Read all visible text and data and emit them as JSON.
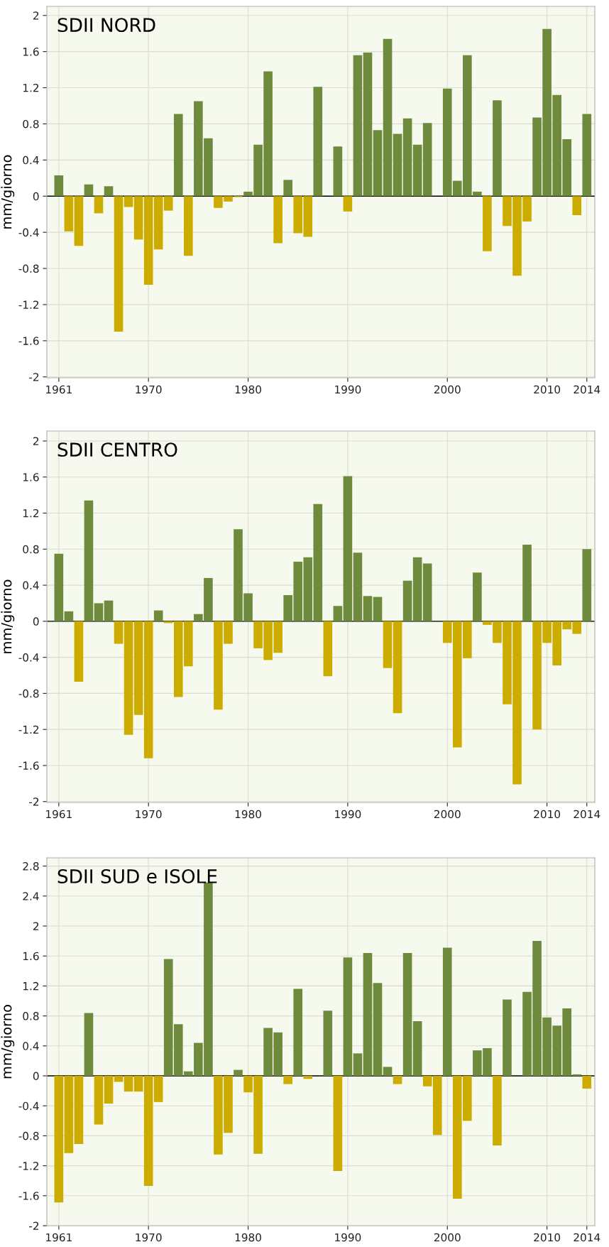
{
  "chart_data": [
    {
      "type": "bar",
      "title": "SDII NORD",
      "ylabel": "mm/giorno",
      "x": [
        1961,
        1962,
        1963,
        1964,
        1965,
        1966,
        1967,
        1968,
        1969,
        1970,
        1971,
        1972,
        1973,
        1974,
        1975,
        1976,
        1977,
        1978,
        1979,
        1980,
        1981,
        1982,
        1983,
        1984,
        1985,
        1986,
        1987,
        1988,
        1989,
        1990,
        1991,
        1992,
        1993,
        1994,
        1995,
        1996,
        1997,
        1998,
        1999,
        2000,
        2001,
        2002,
        2003,
        2004,
        2005,
        2006,
        2007,
        2008,
        2009,
        2010,
        2011,
        2012,
        2013,
        2014
      ],
      "values": [
        0.23,
        -0.39,
        -0.55,
        0.13,
        -0.19,
        0.11,
        -1.5,
        -0.12,
        -0.48,
        -0.98,
        -0.59,
        -0.16,
        0.91,
        -0.66,
        1.05,
        0.64,
        -0.13,
        -0.06,
        -0.01,
        0.05,
        0.57,
        1.38,
        -0.52,
        0.18,
        -0.41,
        -0.45,
        1.21,
        0,
        0.55,
        -0.17,
        1.56,
        1.59,
        0.73,
        1.74,
        0.69,
        0.86,
        0.57,
        0.81,
        0,
        1.19,
        0.17,
        1.56,
        0.05,
        -0.61,
        1.06,
        -0.33,
        -0.88,
        -0.28,
        0.87,
        1.85,
        1.12,
        0.63,
        -0.21,
        0.91
      ],
      "colors": [
        "#6e8b3d",
        "#cdac00",
        "#cdac00",
        "#6e8b3d",
        "#cdac00",
        "#6e8b3d",
        "#cdac00",
        "#cdac00",
        "#cdac00",
        "#cdac00",
        "#cdac00",
        "#cdac00",
        "#6e8b3d",
        "#cdac00",
        "#6e8b3d",
        "#6e8b3d",
        "#cdac00",
        "#cdac00",
        "#cdac00",
        "#6e8b3d",
        "#6e8b3d",
        "#6e8b3d",
        "#cdac00",
        "#6e8b3d",
        "#cdac00",
        "#cdac00",
        "#6e8b3d",
        "#6e8b3d",
        "#6e8b3d",
        "#cdac00",
        "#6e8b3d",
        "#6e8b3d",
        "#6e8b3d",
        "#6e8b3d",
        "#6e8b3d",
        "#6e8b3d",
        "#6e8b3d",
        "#6e8b3d",
        "#6e8b3d",
        "#6e8b3d",
        "#6e8b3d",
        "#6e8b3d",
        "#6e8b3d",
        "#cdac00",
        "#6e8b3d",
        "#cdac00",
        "#cdac00",
        "#cdac00",
        "#6e8b3d",
        "#6e8b3d",
        "#6e8b3d",
        "#6e8b3d",
        "#cdac00",
        "#6e8b3d"
      ],
      "xlim": [
        1959.8,
        2014.8
      ],
      "xticks": [
        1961,
        1970,
        1980,
        1990,
        2000,
        2010,
        2014
      ],
      "ylim": [
        -2.01,
        2.1
      ],
      "yticks": [
        -2,
        -1.6,
        -1.2,
        -0.8,
        -0.4,
        0,
        0.4,
        0.8,
        1.2,
        1.6,
        2
      ],
      "ref_lines": [
        {
          "axis": "y",
          "value": 0,
          "label": null,
          "color": "#000000"
        }
      ],
      "grid": true
    },
    {
      "type": "bar",
      "title": "SDII CENTRO",
      "ylabel": "mm/giorno",
      "x": [
        1961,
        1962,
        1963,
        1964,
        1965,
        1966,
        1967,
        1968,
        1969,
        1970,
        1971,
        1972,
        1973,
        1974,
        1975,
        1976,
        1977,
        1978,
        1979,
        1980,
        1981,
        1982,
        1983,
        1984,
        1985,
        1986,
        1987,
        1988,
        1989,
        1990,
        1991,
        1992,
        1993,
        1994,
        1995,
        1996,
        1997,
        1998,
        1999,
        2000,
        2001,
        2002,
        2003,
        2004,
        2005,
        2006,
        2007,
        2008,
        2009,
        2010,
        2011,
        2012,
        2013,
        2014
      ],
      "values": [
        0.75,
        0.11,
        -0.67,
        1.34,
        0.2,
        0.23,
        -0.25,
        -1.26,
        -1.04,
        -1.52,
        0.12,
        -0.02,
        -0.84,
        -0.5,
        0.08,
        0.48,
        -0.98,
        -0.25,
        1.02,
        0.31,
        -0.3,
        -0.43,
        -0.35,
        0.29,
        0.66,
        0.71,
        1.3,
        -0.61,
        0.17,
        1.61,
        0.76,
        0.28,
        0.27,
        -0.52,
        -1.02,
        0.45,
        0.71,
        0.64,
        0,
        -0.24,
        -1.4,
        -0.41,
        0.54,
        -0.04,
        -0.24,
        -0.92,
        -1.81,
        0.85,
        -1.2,
        -0.24,
        -0.49,
        -0.09,
        -0.14,
        0.8
      ],
      "colors": [
        "#6e8b3d",
        "#6e8b3d",
        "#cdac00",
        "#6e8b3d",
        "#6e8b3d",
        "#6e8b3d",
        "#cdac00",
        "#cdac00",
        "#cdac00",
        "#cdac00",
        "#6e8b3d",
        "#cdac00",
        "#cdac00",
        "#cdac00",
        "#6e8b3d",
        "#6e8b3d",
        "#cdac00",
        "#cdac00",
        "#6e8b3d",
        "#6e8b3d",
        "#cdac00",
        "#cdac00",
        "#cdac00",
        "#6e8b3d",
        "#6e8b3d",
        "#6e8b3d",
        "#6e8b3d",
        "#cdac00",
        "#6e8b3d",
        "#6e8b3d",
        "#6e8b3d",
        "#6e8b3d",
        "#6e8b3d",
        "#cdac00",
        "#cdac00",
        "#6e8b3d",
        "#6e8b3d",
        "#6e8b3d",
        "#6e8b3d",
        "#cdac00",
        "#cdac00",
        "#cdac00",
        "#6e8b3d",
        "#cdac00",
        "#cdac00",
        "#cdac00",
        "#cdac00",
        "#6e8b3d",
        "#cdac00",
        "#cdac00",
        "#cdac00",
        "#cdac00",
        "#cdac00",
        "#6e8b3d"
      ],
      "xlim": [
        1959.8,
        2014.8
      ],
      "xticks": [
        1961,
        1970,
        1980,
        1990,
        2000,
        2010,
        2014
      ],
      "ylim": [
        -2.01,
        2.11
      ],
      "yticks": [
        -2,
        -1.6,
        -1.2,
        -0.8,
        -0.4,
        0,
        0.4,
        0.8,
        1.2,
        1.6,
        2
      ],
      "ref_lines": [
        {
          "axis": "y",
          "value": 0,
          "label": null,
          "color": "#000000"
        }
      ],
      "grid": true
    },
    {
      "type": "bar",
      "title": "SDII SUD e ISOLE",
      "ylabel": "mm/giorno",
      "x": [
        1961,
        1962,
        1963,
        1964,
        1965,
        1966,
        1967,
        1968,
        1969,
        1970,
        1971,
        1972,
        1973,
        1974,
        1975,
        1976,
        1977,
        1978,
        1979,
        1980,
        1981,
        1982,
        1983,
        1984,
        1985,
        1986,
        1987,
        1988,
        1989,
        1990,
        1991,
        1992,
        1993,
        1994,
        1995,
        1996,
        1997,
        1998,
        1999,
        2000,
        2001,
        2002,
        2003,
        2004,
        2005,
        2006,
        2007,
        2008,
        2009,
        2010,
        2011,
        2012,
        2013,
        2014
      ],
      "values": [
        -1.69,
        -1.03,
        -0.91,
        0.84,
        -0.65,
        -0.37,
        -0.08,
        -0.21,
        -0.21,
        -1.47,
        -0.35,
        1.56,
        0.69,
        0.06,
        0.44,
        2.58,
        -1.05,
        -0.76,
        0.08,
        -0.22,
        -1.04,
        0.64,
        0.58,
        -0.11,
        1.16,
        -0.04,
        0,
        0.87,
        -1.27,
        1.58,
        0.3,
        1.64,
        1.24,
        0.12,
        -0.11,
        1.64,
        0.73,
        -0.14,
        -0.79,
        1.71,
        -1.64,
        -0.6,
        0.34,
        0.37,
        -0.93,
        1.02,
        0,
        1.12,
        1.8,
        0.78,
        0.67,
        0.9,
        0.02,
        -0.17
      ],
      "colors": [
        "#cdac00",
        "#cdac00",
        "#cdac00",
        "#6e8b3d",
        "#cdac00",
        "#cdac00",
        "#cdac00",
        "#cdac00",
        "#cdac00",
        "#cdac00",
        "#cdac00",
        "#6e8b3d",
        "#6e8b3d",
        "#6e8b3d",
        "#6e8b3d",
        "#6e8b3d",
        "#cdac00",
        "#cdac00",
        "#6e8b3d",
        "#cdac00",
        "#cdac00",
        "#6e8b3d",
        "#6e8b3d",
        "#cdac00",
        "#6e8b3d",
        "#cdac00",
        "#6e8b3d",
        "#6e8b3d",
        "#cdac00",
        "#6e8b3d",
        "#6e8b3d",
        "#6e8b3d",
        "#6e8b3d",
        "#6e8b3d",
        "#cdac00",
        "#6e8b3d",
        "#6e8b3d",
        "#cdac00",
        "#cdac00",
        "#6e8b3d",
        "#cdac00",
        "#cdac00",
        "#6e8b3d",
        "#6e8b3d",
        "#cdac00",
        "#6e8b3d",
        "#6e8b3d",
        "#6e8b3d",
        "#6e8b3d",
        "#6e8b3d",
        "#6e8b3d",
        "#6e8b3d",
        "#6e8b3d",
        "#cdac00"
      ],
      "xlim": [
        1959.8,
        2014.8
      ],
      "xticks": [
        1961,
        1970,
        1980,
        1990,
        2000,
        2010,
        2014
      ],
      "ylim": [
        -2.0,
        2.91
      ],
      "yticks": [
        -2,
        -1.6,
        -1.2,
        -0.8,
        -0.4,
        0,
        0.4,
        0.8,
        1.2,
        1.6,
        2,
        2.4,
        2.8
      ],
      "ref_lines": [
        {
          "axis": "y",
          "value": 0,
          "label": null,
          "color": "#000000"
        }
      ],
      "grid": true
    }
  ]
}
